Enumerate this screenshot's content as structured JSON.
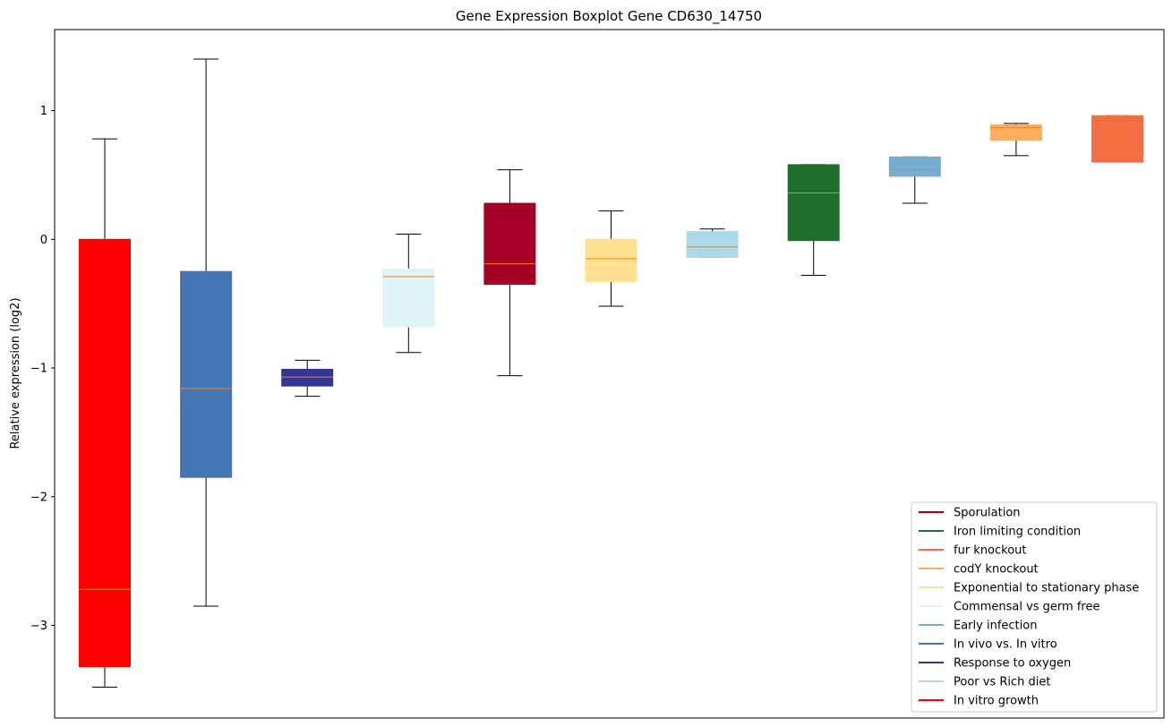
{
  "chart_data": {
    "type": "boxplot",
    "title": "Gene Expression Boxplot Gene CD630_14750",
    "ylabel": "Relative expression (log2)",
    "xlabel": "",
    "ylim": [
      -3.72,
      1.63
    ],
    "yticks": [
      1,
      0,
      -1,
      -2,
      -3
    ],
    "ytick_labels": [
      "1",
      "0",
      "−1",
      "−2",
      "−3"
    ],
    "grid": false,
    "legend_position": "lower-right",
    "median_color": "#ff7f0e",
    "series": [
      {
        "name": "In vitro growth",
        "color": "#ff0000",
        "whisker_low": -3.48,
        "q1": -3.32,
        "median": -2.72,
        "q3": 0.0,
        "whisker_high": 0.78
      },
      {
        "name": "In vivo vs. In vitro",
        "color": "#4575b4",
        "whisker_low": -2.85,
        "q1": -1.85,
        "median": -1.16,
        "q3": -0.25,
        "whisker_high": 1.4
      },
      {
        "name": "Response to oxygen",
        "color": "#313695",
        "whisker_low": -1.22,
        "q1": -1.14,
        "median": -1.07,
        "q3": -1.01,
        "whisker_high": -0.94
      },
      {
        "name": "Commensal vs germ free",
        "color": "#e0f3f8",
        "whisker_low": -0.88,
        "q1": -0.68,
        "median": -0.29,
        "q3": -0.23,
        "whisker_high": 0.04
      },
      {
        "name": "Sporulation",
        "color": "#a50026",
        "whisker_low": -1.06,
        "q1": -0.35,
        "median": -0.19,
        "q3": 0.28,
        "whisker_high": 0.54
      },
      {
        "name": "Exponential to stationary phase",
        "color": "#fee090",
        "whisker_low": -0.52,
        "q1": -0.33,
        "median": -0.15,
        "q3": 0.0,
        "whisker_high": 0.22
      },
      {
        "name": "Poor vs Rich diet",
        "color": "#abd9e9",
        "whisker_low": -0.14,
        "q1": -0.14,
        "median": -0.06,
        "q3": 0.06,
        "whisker_high": 0.08
      },
      {
        "name": "Iron limiting condition",
        "color": "#1f6e2b",
        "whisker_low": -0.28,
        "q1": -0.01,
        "median": 0.36,
        "q3": 0.58,
        "whisker_high": 0.58
      },
      {
        "name": "Early infection",
        "color": "#74add1",
        "whisker_low": 0.28,
        "q1": 0.49,
        "median": 0.54,
        "q3": 0.64,
        "whisker_high": 0.64
      },
      {
        "name": "codY knockout",
        "color": "#fdae61",
        "whisker_low": 0.65,
        "q1": 0.77,
        "median": 0.87,
        "q3": 0.89,
        "whisker_high": 0.9
      },
      {
        "name": "fur knockout",
        "color": "#f46d43",
        "whisker_low": 0.6,
        "q1": 0.6,
        "median": 0.96,
        "q3": 0.96,
        "whisker_high": 0.96
      }
    ],
    "legend": [
      {
        "label": "Sporulation",
        "color": "#a50026"
      },
      {
        "label": "Iron limiting condition",
        "color": "#1f6e2b"
      },
      {
        "label": "fur knockout",
        "color": "#f46d43"
      },
      {
        "label": "codY knockout",
        "color": "#fdae61"
      },
      {
        "label": "Exponential to stationary phase",
        "color": "#fee090"
      },
      {
        "label": "Commensal vs germ free",
        "color": "#e0f3f8"
      },
      {
        "label": "Early infection",
        "color": "#74add1"
      },
      {
        "label": "In vivo vs. In vitro",
        "color": "#4575b4"
      },
      {
        "label": "Response to oxygen",
        "color": "#313695"
      },
      {
        "label": "Poor vs Rich diet",
        "color": "#abd9e9"
      },
      {
        "label": "In vitro growth",
        "color": "#ff0000"
      }
    ]
  }
}
